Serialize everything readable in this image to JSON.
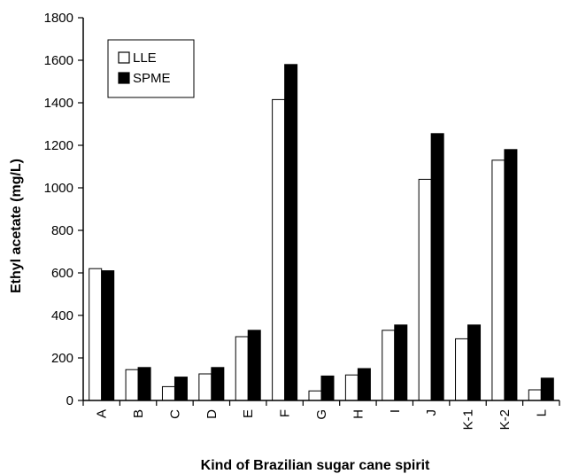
{
  "chart_data": {
    "type": "bar",
    "title": "",
    "xlabel": "Kind of Brazilian sugar cane spirit",
    "ylabel": "Ethyl acetate (mg/L)",
    "categories": [
      "A",
      "B",
      "C",
      "D",
      "E",
      "F",
      "G",
      "H",
      "I",
      "J",
      "K-1",
      "K-2",
      "L"
    ],
    "series": [
      {
        "name": "LLE",
        "color": "#ffffff",
        "values": [
          620,
          145,
          65,
          125,
          300,
          1415,
          45,
          120,
          330,
          1040,
          290,
          1130,
          50
        ]
      },
      {
        "name": "SPME",
        "color": "#000000",
        "values": [
          610,
          155,
          110,
          155,
          330,
          1580,
          115,
          150,
          355,
          1255,
          355,
          1180,
          105
        ]
      }
    ],
    "ylim": [
      0,
      1800
    ],
    "yticks": [
      0,
      200,
      400,
      600,
      800,
      1000,
      1200,
      1400,
      1600,
      1800
    ],
    "grid": false,
    "legend_position": "top-left"
  }
}
